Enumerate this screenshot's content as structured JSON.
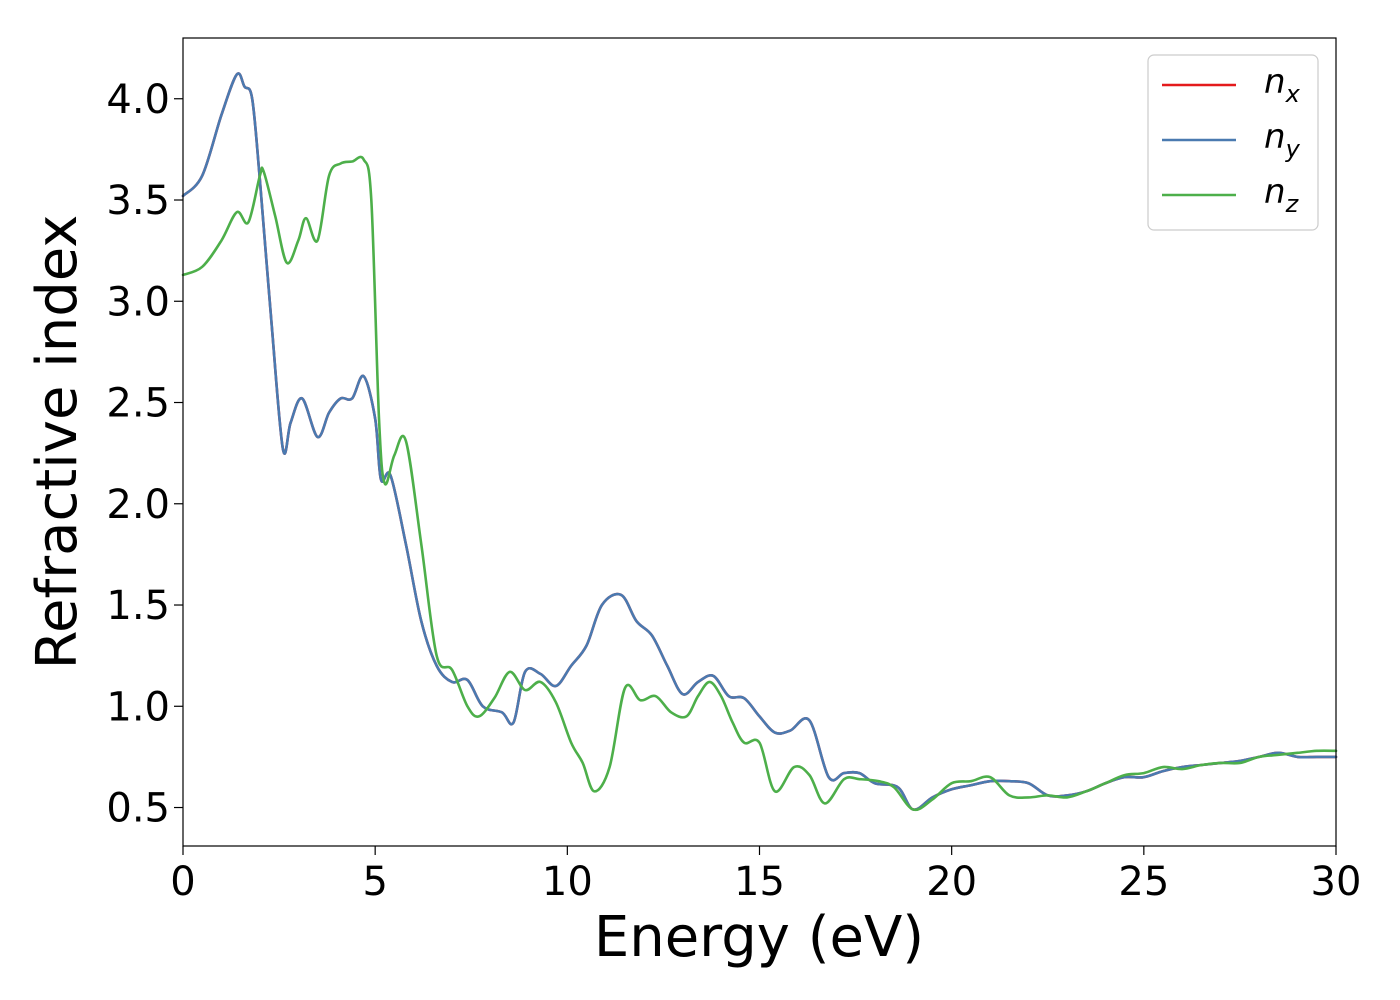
{
  "chart_data": {
    "type": "line",
    "title": "",
    "xlabel": "Energy (eV)",
    "ylabel": "Refractive index",
    "xlim": [
      0,
      30
    ],
    "ylim": [
      0.31,
      4.3
    ],
    "xticks": [
      0,
      5,
      10,
      15,
      20,
      25,
      30
    ],
    "xtick_labels": [
      "0",
      "5",
      "10",
      "15",
      "20",
      "25",
      "30"
    ],
    "yticks": [
      0.5,
      1.0,
      1.5,
      2.0,
      2.5,
      3.0,
      3.5,
      4.0
    ],
    "ytick_labels": [
      "0.5",
      "1.0",
      "1.5",
      "2.0",
      "2.5",
      "3.0",
      "3.5",
      "4.0"
    ],
    "grid": false,
    "legend_position": "top-right",
    "series": [
      {
        "name": "n",
        "subscript": "x",
        "color": "#e41a1c",
        "x": [
          0,
          0.5,
          1.0,
          1.4,
          1.6,
          1.8,
          2.0,
          2.3,
          2.6,
          2.8,
          3.1,
          3.5,
          3.8,
          4.1,
          4.4,
          4.7,
          5.0,
          5.15,
          5.4,
          5.8,
          6.2,
          6.6,
          7.0,
          7.4,
          7.8,
          8.3,
          8.6,
          8.9,
          9.3,
          9.7,
          10.1,
          10.5,
          10.9,
          11.4,
          11.8,
          12.2,
          12.6,
          13.0,
          13.4,
          13.8,
          14.2,
          14.6,
          15.0,
          15.4,
          15.8,
          16.3,
          16.8,
          17.2,
          17.6,
          18.0,
          18.6,
          19.0,
          19.5,
          20.0,
          20.5,
          21.0,
          21.5,
          22.0,
          22.5,
          23.0,
          23.5,
          24.0,
          24.5,
          25.0,
          25.5,
          26.0,
          26.5,
          27.0,
          27.5,
          28.0,
          28.5,
          29.0,
          29.5,
          30.0
        ],
        "y": [
          3.52,
          3.62,
          3.92,
          4.12,
          4.06,
          4.0,
          3.6,
          2.9,
          2.27,
          2.4,
          2.52,
          2.33,
          2.45,
          2.52,
          2.52,
          2.63,
          2.42,
          2.12,
          2.14,
          1.8,
          1.42,
          1.2,
          1.12,
          1.13,
          1.0,
          0.97,
          0.92,
          1.17,
          1.16,
          1.1,
          1.2,
          1.3,
          1.5,
          1.55,
          1.42,
          1.35,
          1.2,
          1.06,
          1.12,
          1.15,
          1.05,
          1.04,
          0.95,
          0.87,
          0.88,
          0.93,
          0.65,
          0.67,
          0.67,
          0.62,
          0.6,
          0.49,
          0.55,
          0.59,
          0.61,
          0.63,
          0.63,
          0.62,
          0.56,
          0.56,
          0.58,
          0.62,
          0.65,
          0.65,
          0.68,
          0.7,
          0.71,
          0.72,
          0.73,
          0.75,
          0.77,
          0.75,
          0.75,
          0.75
        ]
      },
      {
        "name": "n",
        "subscript": "y",
        "color": "#4a7ab0",
        "x": [
          0,
          0.5,
          1.0,
          1.4,
          1.6,
          1.8,
          2.0,
          2.3,
          2.6,
          2.8,
          3.1,
          3.5,
          3.8,
          4.1,
          4.4,
          4.7,
          5.0,
          5.15,
          5.4,
          5.8,
          6.2,
          6.6,
          7.0,
          7.4,
          7.8,
          8.3,
          8.6,
          8.9,
          9.3,
          9.7,
          10.1,
          10.5,
          10.9,
          11.4,
          11.8,
          12.2,
          12.6,
          13.0,
          13.4,
          13.8,
          14.2,
          14.6,
          15.0,
          15.4,
          15.8,
          16.3,
          16.8,
          17.2,
          17.6,
          18.0,
          18.6,
          19.0,
          19.5,
          20.0,
          20.5,
          21.0,
          21.5,
          22.0,
          22.5,
          23.0,
          23.5,
          24.0,
          24.5,
          25.0,
          25.5,
          26.0,
          26.5,
          27.0,
          27.5,
          28.0,
          28.5,
          29.0,
          29.5,
          30.0
        ],
        "y": [
          3.52,
          3.62,
          3.92,
          4.12,
          4.06,
          4.0,
          3.6,
          2.9,
          2.27,
          2.4,
          2.52,
          2.33,
          2.45,
          2.52,
          2.52,
          2.63,
          2.42,
          2.12,
          2.14,
          1.8,
          1.42,
          1.2,
          1.12,
          1.13,
          1.0,
          0.97,
          0.92,
          1.17,
          1.16,
          1.1,
          1.2,
          1.3,
          1.5,
          1.55,
          1.42,
          1.35,
          1.2,
          1.06,
          1.12,
          1.15,
          1.05,
          1.04,
          0.95,
          0.87,
          0.88,
          0.93,
          0.65,
          0.67,
          0.67,
          0.62,
          0.6,
          0.49,
          0.55,
          0.59,
          0.61,
          0.63,
          0.63,
          0.62,
          0.56,
          0.56,
          0.58,
          0.62,
          0.65,
          0.65,
          0.68,
          0.7,
          0.71,
          0.72,
          0.73,
          0.75,
          0.77,
          0.75,
          0.75,
          0.75
        ]
      },
      {
        "name": "n",
        "subscript": "z",
        "color": "#4daf4a",
        "x": [
          0,
          0.5,
          1.0,
          1.4,
          1.7,
          2.0,
          2.1,
          2.4,
          2.7,
          3.0,
          3.2,
          3.5,
          3.8,
          4.1,
          4.4,
          4.7,
          4.9,
          5.1,
          5.25,
          5.5,
          5.8,
          6.2,
          6.6,
          7.0,
          7.4,
          7.7,
          8.1,
          8.5,
          8.9,
          9.3,
          9.7,
          10.1,
          10.4,
          10.7,
          11.1,
          11.5,
          11.9,
          12.3,
          12.7,
          13.1,
          13.4,
          13.7,
          14.0,
          14.3,
          14.6,
          15.0,
          15.4,
          15.9,
          16.3,
          16.7,
          17.2,
          17.6,
          18.1,
          18.5,
          19.0,
          19.5,
          20.0,
          20.5,
          21.0,
          21.5,
          22.0,
          22.5,
          23.0,
          23.5,
          24.0,
          24.5,
          25.0,
          25.5,
          26.0,
          26.5,
          27.0,
          27.5,
          28.0,
          28.5,
          29.0,
          29.5,
          30.0
        ],
        "y": [
          3.13,
          3.17,
          3.3,
          3.44,
          3.39,
          3.62,
          3.64,
          3.42,
          3.19,
          3.3,
          3.41,
          3.3,
          3.62,
          3.68,
          3.69,
          3.7,
          3.5,
          2.42,
          2.1,
          2.24,
          2.31,
          1.8,
          1.25,
          1.18,
          1.0,
          0.95,
          1.04,
          1.17,
          1.08,
          1.12,
          1.02,
          0.82,
          0.72,
          0.58,
          0.7,
          1.09,
          1.03,
          1.05,
          0.97,
          0.95,
          1.05,
          1.12,
          1.05,
          0.92,
          0.82,
          0.82,
          0.58,
          0.7,
          0.66,
          0.52,
          0.64,
          0.64,
          0.63,
          0.6,
          0.49,
          0.54,
          0.62,
          0.63,
          0.65,
          0.56,
          0.55,
          0.56,
          0.55,
          0.58,
          0.62,
          0.66,
          0.67,
          0.7,
          0.69,
          0.71,
          0.72,
          0.72,
          0.75,
          0.76,
          0.77,
          0.78,
          0.78
        ]
      }
    ]
  }
}
